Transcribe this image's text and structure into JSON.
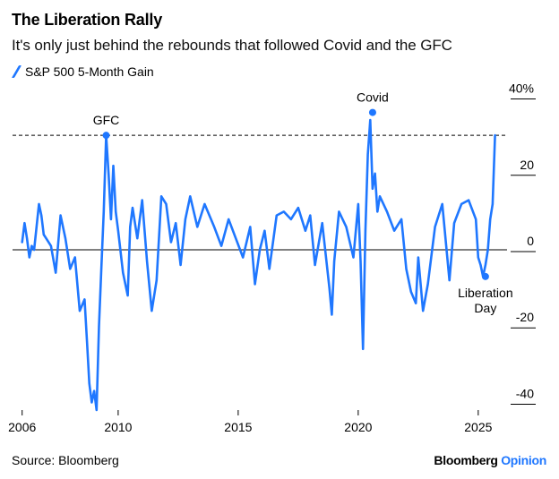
{
  "title": "The Liberation Rally",
  "subtitle": "It's only just behind the rebounds that followed Covid and the GFC",
  "source": "Source: Bloomberg",
  "brand": {
    "name": "Bloomberg",
    "product": "Opinion"
  },
  "colors": {
    "line": "#1f77ff",
    "brand_accent": "#1f77ff"
  },
  "chart_data": {
    "type": "line",
    "series": [
      {
        "name": "S&P 500 5-Month Gain",
        "x": [
          2006.0,
          2006.1,
          2006.2,
          2006.3,
          2006.4,
          2006.5,
          2006.6,
          2006.7,
          2006.8,
          2006.9,
          2007.0,
          2007.2,
          2007.4,
          2007.6,
          2007.8,
          2008.0,
          2008.2,
          2008.4,
          2008.6,
          2008.7,
          2008.8,
          2008.9,
          2009.0,
          2009.1,
          2009.2,
          2009.3,
          2009.4,
          2009.5,
          2009.6,
          2009.7,
          2009.8,
          2009.9,
          2010.0,
          2010.2,
          2010.4,
          2010.5,
          2010.6,
          2010.8,
          2011.0,
          2011.2,
          2011.4,
          2011.6,
          2011.8,
          2012.0,
          2012.2,
          2012.4,
          2012.6,
          2012.8,
          2013.0,
          2013.3,
          2013.6,
          2014.0,
          2014.3,
          2014.6,
          2014.9,
          2015.2,
          2015.5,
          2015.7,
          2015.9,
          2016.1,
          2016.3,
          2016.6,
          2016.9,
          2017.2,
          2017.5,
          2017.8,
          2018.0,
          2018.2,
          2018.5,
          2018.8,
          2018.9,
          2019.0,
          2019.2,
          2019.5,
          2019.8,
          2020.0,
          2020.1,
          2020.2,
          2020.3,
          2020.4,
          2020.5,
          2020.6,
          2020.7,
          2020.8,
          2020.9,
          2021.2,
          2021.5,
          2021.8,
          2022.0,
          2022.2,
          2022.4,
          2022.5,
          2022.7,
          2022.9,
          2023.2,
          2023.5,
          2023.8,
          2024.0,
          2024.3,
          2024.6,
          2024.9,
          2025.0,
          2025.1,
          2025.2,
          2025.3,
          2025.4,
          2025.5,
          2025.6,
          2025.7
        ],
        "values": [
          2,
          7,
          3,
          -2,
          1,
          0,
          6,
          12,
          9,
          4,
          3,
          1,
          -6,
          9,
          3,
          -5,
          -2,
          -16,
          -13,
          -24,
          -35,
          -40,
          -37,
          -42,
          -20,
          -5,
          10,
          30,
          20,
          8,
          22,
          10,
          5,
          -6,
          -12,
          6,
          11,
          3,
          13,
          -3,
          -16,
          -8,
          14,
          12,
          2,
          7,
          -4,
          8,
          14,
          6,
          12,
          6,
          1,
          8,
          3,
          -2,
          6,
          -9,
          0,
          5,
          -5,
          9,
          10,
          8,
          11,
          5,
          9,
          -4,
          7,
          -10,
          -17,
          -3,
          10,
          6,
          -2,
          12,
          -3,
          -26,
          5,
          25,
          34,
          16,
          20,
          10,
          14,
          10,
          5,
          8,
          -5,
          -11,
          -14,
          -2,
          -16,
          -9,
          6,
          12,
          -8,
          7,
          12,
          13,
          8,
          -2,
          -4,
          -7,
          -4,
          0,
          8,
          12,
          30
        ],
        "values_unit": "%"
      }
    ],
    "x_tick_labels": [
      "2006",
      "2010",
      "2015",
      "2020",
      "2025"
    ],
    "y_tick_labels": [
      "40%",
      "20",
      "0",
      "-20",
      "-40"
    ],
    "xlim": [
      2005.6,
      2026.2
    ],
    "ylim": [
      -42,
      42
    ],
    "reference_line": {
      "value": 30,
      "style": "dashed"
    },
    "zero_line": true,
    "grid": false,
    "legend_position": "top-left",
    "annotations": [
      {
        "label": "GFC",
        "x": 2009.5,
        "y": 30
      },
      {
        "label": "Covid",
        "x": 2020.6,
        "y": 36
      },
      {
        "label": "Liberation",
        "label2": "Day",
        "x": 2025.3,
        "y": -7
      }
    ]
  }
}
